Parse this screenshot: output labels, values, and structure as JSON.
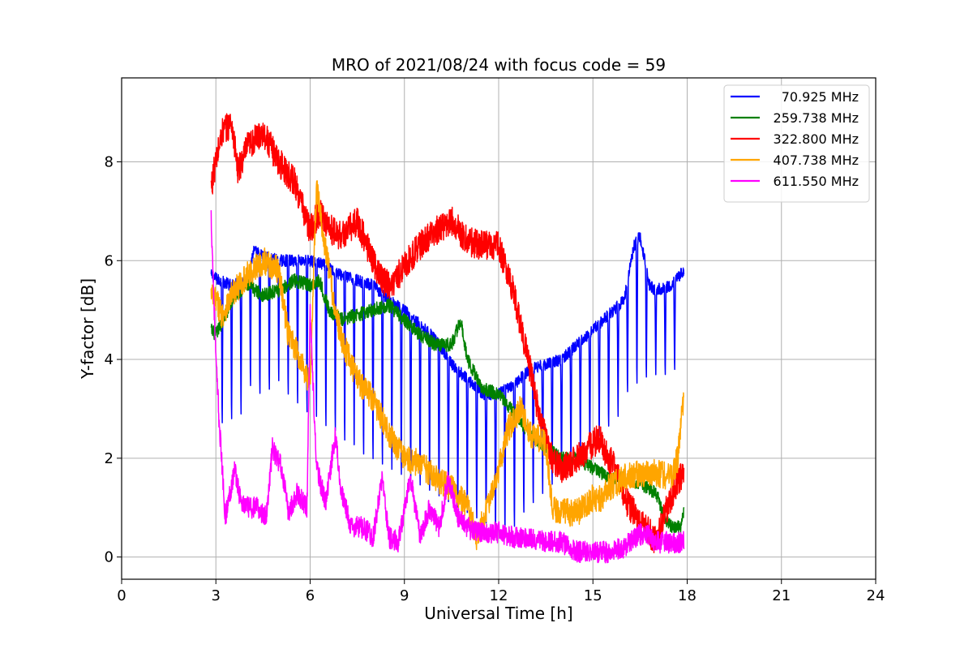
{
  "chart_data": {
    "type": "line",
    "title": "MRO of 2021/08/24 with focus code = 59",
    "xlabel": "Universal Time [h]",
    "ylabel": "Y-factor [dB]",
    "xlim": [
      0,
      24
    ],
    "ylim": [
      -0.45,
      9.7
    ],
    "xticks": [
      0,
      3,
      6,
      9,
      12,
      15,
      18,
      21,
      24
    ],
    "yticks": [
      0,
      2,
      4,
      6,
      8
    ],
    "grid": true,
    "legend_position": "top-right",
    "series": [
      {
        "name": "70.925 MHz",
        "color": "#0000ff",
        "points": [
          [
            2.85,
            5.7
          ],
          [
            3.1,
            5.6
          ],
          [
            3.5,
            5.5
          ],
          [
            4.0,
            5.6
          ],
          [
            4.2,
            6.2
          ],
          [
            4.5,
            6.1
          ],
          [
            5.0,
            6.0
          ],
          [
            5.5,
            6.0
          ],
          [
            6.0,
            6.0
          ],
          [
            6.5,
            5.9
          ],
          [
            7.0,
            5.7
          ],
          [
            7.5,
            5.6
          ],
          [
            8.0,
            5.5
          ],
          [
            8.5,
            5.2
          ],
          [
            9.0,
            5.0
          ],
          [
            9.5,
            4.7
          ],
          [
            10.0,
            4.4
          ],
          [
            10.5,
            3.9
          ],
          [
            11.0,
            3.6
          ],
          [
            11.5,
            3.3
          ],
          [
            12.0,
            3.3
          ],
          [
            12.5,
            3.5
          ],
          [
            13.0,
            3.8
          ],
          [
            13.5,
            3.9
          ],
          [
            14.0,
            4.0
          ],
          [
            14.5,
            4.3
          ],
          [
            15.0,
            4.6
          ],
          [
            15.5,
            4.9
          ],
          [
            16.0,
            5.2
          ],
          [
            16.3,
            6.3
          ],
          [
            16.5,
            6.5
          ],
          [
            16.8,
            5.5
          ],
          [
            17.0,
            5.4
          ],
          [
            17.5,
            5.5
          ],
          [
            17.9,
            5.8
          ]
        ],
        "dips": [
          3.2,
          3.5,
          3.8,
          4.1,
          4.4,
          4.7,
          5.0,
          5.3,
          5.6,
          5.9,
          6.2,
          6.5,
          6.8,
          7.1,
          7.4,
          7.7,
          8.0,
          8.3,
          8.6,
          8.9,
          9.2,
          9.5,
          9.8,
          10.1,
          10.4,
          10.7,
          11.0,
          11.3,
          11.6,
          11.9,
          12.2,
          12.5,
          12.8,
          13.1,
          13.4,
          13.7,
          14.0,
          14.3,
          14.6,
          14.9,
          15.2,
          15.5,
          15.8,
          16.1,
          16.4,
          16.7,
          17.0,
          17.3,
          17.6
        ],
        "dip_depth": [
          2.4,
          2.5,
          2.6,
          3.2,
          3.0,
          3.1,
          3.3,
          3.0,
          2.8,
          2.6,
          2.5,
          2.3,
          2.2,
          2.0,
          1.9,
          1.7,
          1.6,
          1.5,
          1.4,
          1.3,
          1.2,
          1.1,
          1.0,
          0.9,
          0.8,
          0.7,
          0.6,
          0.5,
          0.4,
          0.2,
          0.1,
          0.3,
          0.6,
          0.8,
          1.0,
          1.2,
          1.4,
          1.6,
          1.8,
          2.0,
          2.2,
          2.4,
          2.6,
          3.1,
          3.2,
          3.4,
          3.5,
          3.5,
          3.6
        ]
      },
      {
        "name": "259.738 MHz",
        "color": "#008000",
        "points": [
          [
            2.85,
            4.6
          ],
          [
            3.0,
            4.5
          ],
          [
            3.3,
            4.9
          ],
          [
            3.6,
            5.3
          ],
          [
            4.0,
            5.5
          ],
          [
            4.5,
            5.3
          ],
          [
            5.0,
            5.4
          ],
          [
            5.5,
            5.6
          ],
          [
            6.0,
            5.5
          ],
          [
            6.3,
            5.6
          ],
          [
            6.6,
            5.0
          ],
          [
            7.0,
            4.8
          ],
          [
            7.5,
            4.9
          ],
          [
            8.0,
            5.0
          ],
          [
            8.5,
            5.1
          ],
          [
            9.0,
            4.8
          ],
          [
            9.5,
            4.5
          ],
          [
            10.0,
            4.3
          ],
          [
            10.5,
            4.3
          ],
          [
            10.8,
            4.8
          ],
          [
            11.0,
            4.0
          ],
          [
            11.5,
            3.4
          ],
          [
            12.0,
            3.3
          ],
          [
            12.5,
            2.9
          ],
          [
            13.0,
            2.5
          ],
          [
            13.5,
            2.2
          ],
          [
            14.0,
            2.0
          ],
          [
            14.5,
            2.0
          ],
          [
            15.0,
            1.8
          ],
          [
            15.5,
            1.6
          ],
          [
            16.0,
            1.6
          ],
          [
            16.5,
            1.5
          ],
          [
            17.0,
            1.3
          ],
          [
            17.3,
            0.8
          ],
          [
            17.5,
            0.6
          ],
          [
            17.8,
            0.6
          ],
          [
            17.9,
            0.9
          ]
        ]
      },
      {
        "name": "322.800 MHz",
        "color": "#ff0000",
        "points": [
          [
            2.85,
            7.5
          ],
          [
            3.0,
            8.0
          ],
          [
            3.2,
            8.6
          ],
          [
            3.5,
            8.8
          ],
          [
            3.7,
            7.8
          ],
          [
            4.0,
            8.3
          ],
          [
            4.5,
            8.6
          ],
          [
            5.0,
            8.0
          ],
          [
            5.5,
            7.6
          ],
          [
            6.0,
            6.6
          ],
          [
            6.3,
            7.0
          ],
          [
            6.7,
            6.6
          ],
          [
            7.0,
            6.5
          ],
          [
            7.5,
            6.8
          ],
          [
            8.0,
            6.0
          ],
          [
            8.3,
            5.6
          ],
          [
            8.6,
            5.5
          ],
          [
            9.0,
            5.9
          ],
          [
            9.5,
            6.3
          ],
          [
            10.0,
            6.6
          ],
          [
            10.5,
            6.8
          ],
          [
            11.0,
            6.4
          ],
          [
            11.5,
            6.3
          ],
          [
            12.0,
            6.3
          ],
          [
            12.5,
            5.3
          ],
          [
            13.0,
            3.8
          ],
          [
            13.3,
            2.8
          ],
          [
            13.7,
            2.0
          ],
          [
            14.0,
            1.8
          ],
          [
            14.5,
            2.0
          ],
          [
            15.0,
            2.3
          ],
          [
            15.2,
            2.4
          ],
          [
            15.5,
            2.0
          ],
          [
            15.8,
            1.7
          ],
          [
            16.0,
            1.2
          ],
          [
            16.3,
            0.9
          ],
          [
            16.6,
            0.7
          ],
          [
            17.0,
            0.3
          ],
          [
            17.3,
            0.9
          ],
          [
            17.6,
            1.4
          ],
          [
            17.9,
            1.7
          ]
        ]
      },
      {
        "name": "407.738 MHz",
        "color": "#ffa500",
        "points": [
          [
            2.85,
            5.3
          ],
          [
            3.0,
            5.2
          ],
          [
            3.2,
            4.9
          ],
          [
            3.5,
            5.3
          ],
          [
            4.0,
            5.7
          ],
          [
            4.5,
            6.0
          ],
          [
            5.0,
            5.8
          ],
          [
            5.3,
            4.5
          ],
          [
            5.7,
            4.0
          ],
          [
            6.0,
            3.5
          ],
          [
            6.2,
            7.5
          ],
          [
            6.5,
            6.2
          ],
          [
            6.8,
            5.0
          ],
          [
            7.0,
            4.4
          ],
          [
            7.5,
            3.6
          ],
          [
            8.0,
            3.2
          ],
          [
            8.5,
            2.5
          ],
          [
            9.0,
            2.0
          ],
          [
            9.5,
            1.9
          ],
          [
            10.0,
            1.6
          ],
          [
            10.5,
            1.4
          ],
          [
            11.0,
            1.0
          ],
          [
            11.3,
            0.4
          ],
          [
            11.6,
            0.9
          ],
          [
            12.0,
            1.8
          ],
          [
            12.3,
            2.6
          ],
          [
            12.7,
            3.0
          ],
          [
            13.0,
            2.5
          ],
          [
            13.5,
            2.3
          ],
          [
            13.7,
            1.0
          ],
          [
            14.0,
            0.9
          ],
          [
            14.5,
            0.9
          ],
          [
            15.0,
            1.2
          ],
          [
            15.3,
            1.2
          ],
          [
            15.5,
            1.4
          ],
          [
            16.0,
            1.6
          ],
          [
            16.5,
            1.7
          ],
          [
            17.0,
            1.7
          ],
          [
            17.5,
            1.6
          ],
          [
            17.7,
            2.0
          ],
          [
            17.9,
            3.3
          ]
        ]
      },
      {
        "name": "611.550 MHz",
        "color": "#ff00ff",
        "points": [
          [
            2.85,
            6.9
          ],
          [
            3.0,
            4.0
          ],
          [
            3.1,
            2.8
          ],
          [
            3.3,
            0.8
          ],
          [
            3.6,
            1.8
          ],
          [
            3.8,
            1.1
          ],
          [
            4.0,
            1.0
          ],
          [
            4.3,
            1.0
          ],
          [
            4.6,
            0.8
          ],
          [
            4.8,
            2.2
          ],
          [
            5.1,
            1.8
          ],
          [
            5.3,
            0.9
          ],
          [
            5.6,
            1.3
          ],
          [
            5.9,
            1.0
          ],
          [
            6.0,
            5.0
          ],
          [
            6.2,
            1.8
          ],
          [
            6.5,
            1.1
          ],
          [
            6.8,
            2.5
          ],
          [
            7.0,
            1.3
          ],
          [
            7.3,
            0.6
          ],
          [
            7.7,
            0.6
          ],
          [
            8.0,
            0.4
          ],
          [
            8.3,
            1.6
          ],
          [
            8.5,
            0.4
          ],
          [
            8.8,
            0.3
          ],
          [
            9.2,
            1.6
          ],
          [
            9.5,
            0.4
          ],
          [
            9.8,
            1.0
          ],
          [
            10.1,
            0.6
          ],
          [
            10.4,
            1.6
          ],
          [
            10.7,
            0.8
          ],
          [
            11.0,
            0.6
          ],
          [
            11.3,
            0.5
          ],
          [
            11.6,
            0.5
          ],
          [
            12.0,
            0.5
          ],
          [
            12.5,
            0.4
          ],
          [
            13.0,
            0.4
          ],
          [
            13.5,
            0.3
          ],
          [
            14.0,
            0.3
          ],
          [
            14.5,
            0.1
          ],
          [
            15.0,
            0.1
          ],
          [
            15.5,
            0.1
          ],
          [
            16.0,
            0.2
          ],
          [
            16.3,
            0.4
          ],
          [
            16.7,
            0.5
          ],
          [
            17.0,
            0.3
          ],
          [
            17.5,
            0.3
          ],
          [
            17.9,
            0.3
          ]
        ]
      }
    ]
  }
}
